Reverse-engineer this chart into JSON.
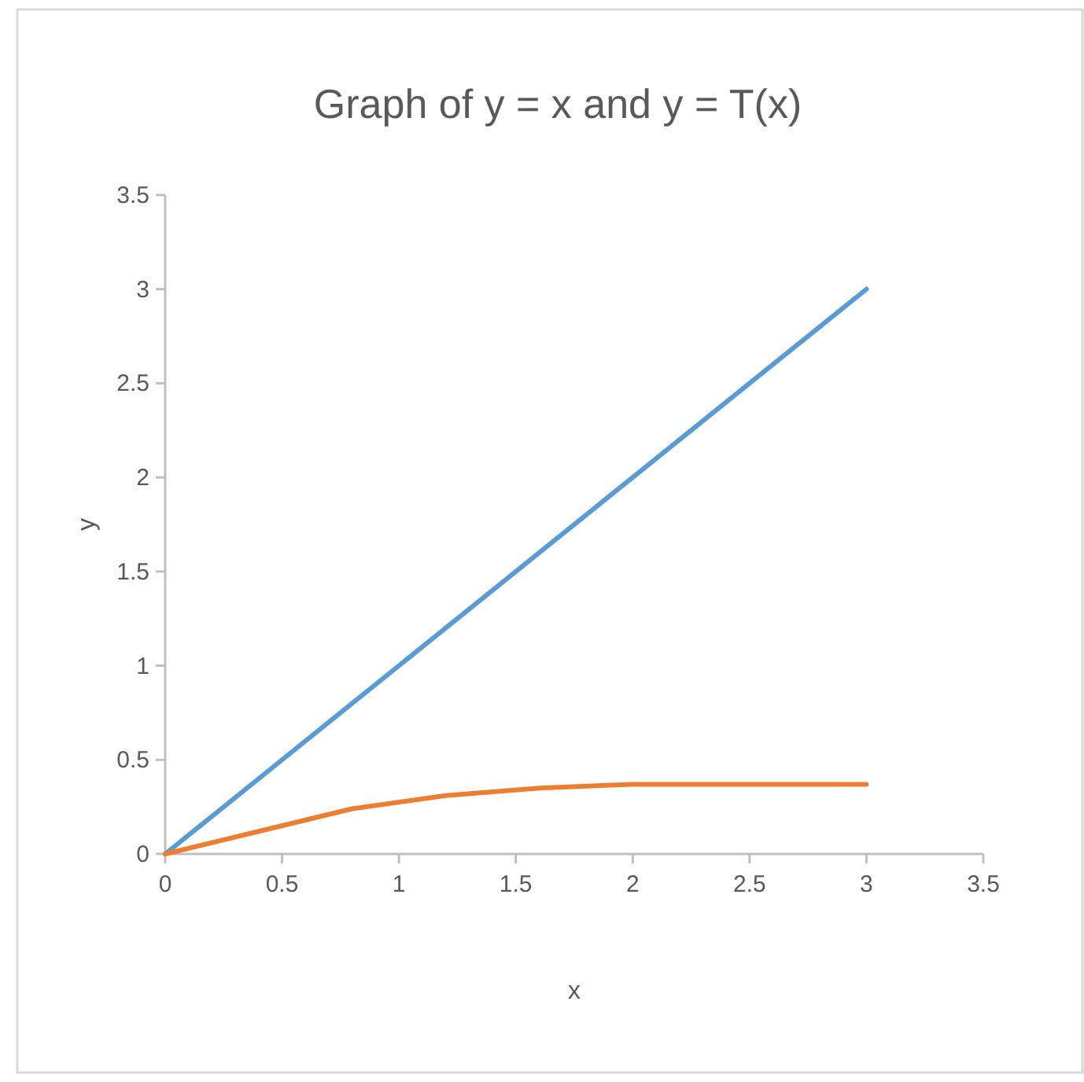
{
  "chart_data": {
    "type": "line",
    "title": "Graph of y = x and y = T(x)",
    "xlabel": "x",
    "ylabel": "y",
    "x": [
      0,
      0.4,
      0.8,
      1.2,
      1.6,
      2,
      2.4,
      2.8,
      3
    ],
    "series": [
      {
        "color": "#5b9bd5",
        "values": [
          0,
          0.4,
          0.8,
          1.2,
          1.6,
          2,
          2.4,
          2.8,
          3
        ]
      },
      {
        "color": "#ed7d31",
        "values": [
          0,
          0.12,
          0.24,
          0.31,
          0.35,
          0.37,
          0.37,
          0.37,
          0.37
        ]
      }
    ],
    "xlim": [
      0,
      3.5
    ],
    "xticks": [
      0,
      0.5,
      1,
      1.5,
      2,
      2.5,
      3,
      3.5
    ],
    "ylim": [
      0,
      3.5
    ],
    "yticks": [
      0,
      0.5,
      1,
      1.5,
      2,
      2.5,
      3,
      3.5
    ],
    "grid": false,
    "marker": "none",
    "line_style": "solid"
  }
}
